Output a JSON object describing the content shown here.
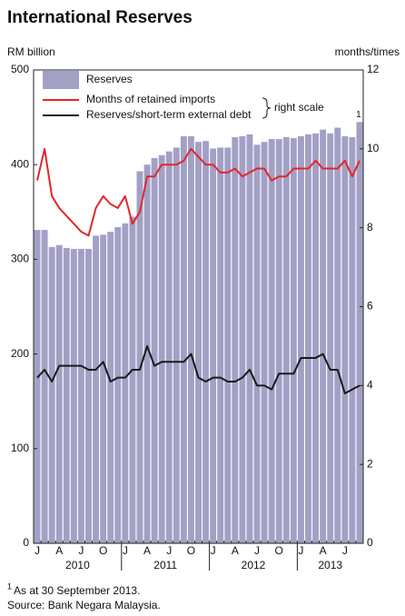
{
  "chart_data": {
    "type": "bar-line",
    "title": "International Reserves",
    "y_label": "RM billion",
    "y2_label": "months/times",
    "categories": [
      "J",
      null,
      null,
      "A",
      null,
      null,
      "J",
      null,
      null,
      "O",
      null,
      null,
      "J",
      null,
      null,
      "A",
      null,
      null,
      "J",
      null,
      null,
      "O",
      null,
      null,
      "J",
      null,
      null,
      "A",
      null,
      null,
      "J",
      null,
      null,
      "O",
      null,
      null,
      "J",
      null,
      null,
      "A",
      null,
      null,
      "J",
      null,
      null
    ],
    "years": [
      "2010",
      "2011",
      "2012",
      "2013"
    ],
    "series": [
      {
        "name": "Reserves",
        "color": "#a3a0c6",
        "type": "bar",
        "values": [
          331,
          331,
          313,
          315,
          312,
          311,
          311,
          311,
          325,
          326,
          329,
          334,
          338,
          345,
          393,
          400,
          407,
          410,
          414,
          418,
          430,
          430,
          424,
          425,
          417,
          418,
          418,
          429,
          430,
          432,
          421,
          424,
          427,
          427,
          429,
          428,
          430,
          432,
          433,
          437,
          433,
          439,
          430,
          429,
          445
        ]
      },
      {
        "name": "Months of retained imports",
        "color": "#e3262b",
        "type": "line",
        "axis": "y2",
        "values": [
          9.2,
          10.0,
          8.8,
          8.5,
          8.3,
          8.1,
          7.9,
          7.8,
          8.5,
          8.8,
          8.6,
          8.5,
          8.8,
          8.1,
          8.4,
          9.3,
          9.3,
          9.6,
          9.6,
          9.6,
          9.7,
          10.0,
          9.8,
          9.6,
          9.6,
          9.4,
          9.4,
          9.5,
          9.3,
          9.4,
          9.5,
          9.5,
          9.2,
          9.3,
          9.3,
          9.5,
          9.5,
          9.5,
          9.7,
          9.5,
          9.5,
          9.5,
          9.7,
          9.3,
          9.7
        ]
      },
      {
        "name": "Reserves/short-term external debt",
        "color": "#1a1a1a",
        "type": "line",
        "axis": "y2",
        "values": [
          4.2,
          4.4,
          4.1,
          4.5,
          4.5,
          4.5,
          4.5,
          4.4,
          4.4,
          4.6,
          4.1,
          4.2,
          4.2,
          4.4,
          4.4,
          5.0,
          4.5,
          4.6,
          4.6,
          4.6,
          4.6,
          4.8,
          4.2,
          4.1,
          4.2,
          4.2,
          4.1,
          4.1,
          4.2,
          4.4,
          4.0,
          4.0,
          3.9,
          4.3,
          4.3,
          4.3,
          4.7,
          4.7,
          4.7,
          4.8,
          4.4,
          4.4,
          3.8,
          3.9,
          4.0
        ]
      }
    ],
    "right_scale_label": "right scale",
    "last_bar_note": "1",
    "ylim": [
      0,
      500
    ],
    "yticks": [
      0,
      100,
      200,
      300,
      400,
      500
    ],
    "y2lim": [
      0,
      12
    ],
    "y2ticks": [
      0,
      2,
      4,
      6,
      8,
      10,
      12
    ],
    "footnote_marker": "1",
    "footnote": "As at  30 September 2013.",
    "source": "Source: Bank Negara Malaysia."
  }
}
